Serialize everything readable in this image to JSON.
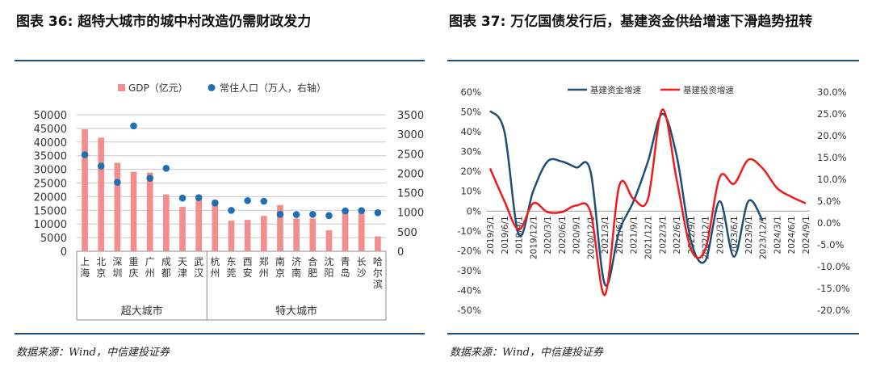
{
  "left_panel": {
    "caption": "图表  36:  超特大城市的城中村改造仍需财政发力",
    "source": "数据来源：Wind，中信建投证券"
  },
  "right_panel": {
    "caption": "图表  37:  万亿国债发行后，基建资金供给增速下滑趋势扭转",
    "source": "数据来源：Wind，中信建投证券"
  },
  "colors": {
    "gdp_bar": "#f28e8e",
    "population_dot": "#1f6fb2",
    "infra_funds_line": "#1f4e79",
    "infra_invest_line": "#ee1c1c",
    "gridline": "#c8c8c8",
    "axis_text": "#333333",
    "rule": "#1f4e79"
  },
  "chart_data": [
    {
      "type": "bar",
      "categories": [
        "上海",
        "北京",
        "深圳",
        "重庆",
        "广州",
        "成都",
        "天津",
        "武汉",
        "杭州",
        "东莞",
        "西安",
        "郑州",
        "南京",
        "济南",
        "合肥",
        "沈阳",
        "青岛",
        "长沙",
        "哈尔滨"
      ],
      "groups": [
        {
          "label": "超大城市",
          "start": 0,
          "end": 7
        },
        {
          "label": "特大城市",
          "start": 8,
          "end": 18
        }
      ],
      "series": [
        {
          "name": "GDP（亿元）",
          "kind": "bar",
          "axis": "left",
          "values": [
            44653,
            41611,
            32388,
            29129,
            28839,
            20818,
            16311,
            18866,
            18753,
            11200,
            11487,
            12934,
            16908,
            12028,
            12013,
            7696,
            14921,
            13966,
            5490
          ]
        },
        {
          "name": "常住人口（万人，右轴）",
          "kind": "scatter",
          "axis": "right",
          "values": [
            2475,
            2184,
            1768,
            3213,
            1873,
            2127,
            1363,
            1374,
            1238,
            1047,
            1299,
            1283,
            949,
            941,
            947,
            915,
            1034,
            1042,
            988
          ]
        }
      ],
      "y_left": {
        "min": 0,
        "max": 50000,
        "step": 5000,
        "ticks": [
          "0",
          "5000",
          "10000",
          "15000",
          "20000",
          "25000",
          "30000",
          "35000",
          "40000",
          "45000",
          "50000"
        ]
      },
      "y_right": {
        "min": 0,
        "max": 3500,
        "step": 500,
        "ticks": [
          "0",
          "500",
          "1000",
          "1500",
          "2000",
          "2500",
          "3000",
          "3500"
        ]
      },
      "grid": true,
      "legend_position": "top-center"
    },
    {
      "type": "line",
      "x": [
        "2019/3/1",
        "2019/6/1",
        "2019/9/1",
        "2019/12/1",
        "2020/3/1",
        "2020/6/1",
        "2020/9/1",
        "2020/12/1",
        "2021/3/1",
        "2021/6/1",
        "2021/9/1",
        "2021/12/1",
        "2022/3/1",
        "2022/6/1",
        "2022/9/1",
        "2022/12/1",
        "2023/3/1",
        "2023/6/1",
        "2023/9/1",
        "2023/12/1",
        "2024/3/1",
        "2024/6/1",
        "2024/9/1"
      ],
      "series": [
        {
          "name": "基建资金增速",
          "axis": "left",
          "values": [
            50.5,
            40,
            -12,
            10,
            25,
            25,
            22,
            20,
            -37,
            -10,
            5,
            25,
            49,
            28,
            -15,
            -25,
            5,
            -23,
            5,
            -5,
            null,
            null,
            null
          ]
        },
        {
          "name": "基建投资增速",
          "axis": "right",
          "values": [
            12.5,
            5,
            -1.5,
            4.5,
            2.5,
            2.5,
            4,
            2.5,
            -16.5,
            8.5,
            5.5,
            5.5,
            26,
            10,
            -6,
            -6,
            10.5,
            9,
            14.5,
            12.5,
            8,
            6,
            4.5
          ]
        }
      ],
      "y_left": {
        "min": -50,
        "max": 60,
        "step": 10,
        "ticks": [
          "-50%",
          "-40%",
          "-30%",
          "-20%",
          "-10%",
          "0%",
          "10%",
          "20%",
          "30%",
          "40%",
          "50%",
          "60%"
        ]
      },
      "y_right": {
        "min": -20,
        "max": 30,
        "step": 5,
        "ticks": [
          "-20.0%",
          "-15.0%",
          "-10.0%",
          "-5.0%",
          "0.0%",
          "5.0%",
          "10.0%",
          "15.0%",
          "20.0%",
          "25.0%",
          "30.0%"
        ]
      },
      "grid": true,
      "legend_position": "top-center"
    }
  ]
}
